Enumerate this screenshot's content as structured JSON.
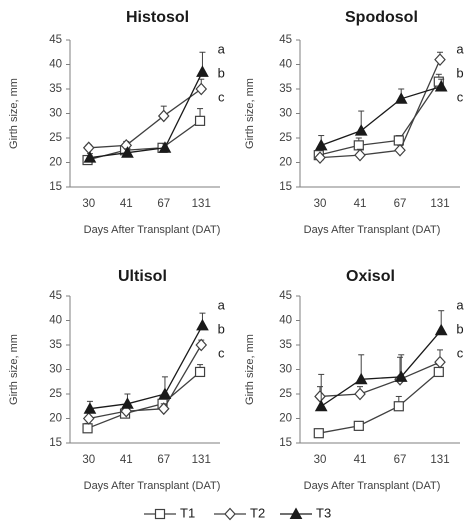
{
  "legend": [
    {
      "label": "T1",
      "marker": "square"
    },
    {
      "label": "T2",
      "marker": "diamond"
    },
    {
      "label": "T3",
      "marker": "triangle"
    }
  ],
  "colors": {
    "line": "#404040",
    "filled": "#1a1a1a",
    "text": "#404040"
  },
  "chart_data": [
    {
      "type": "line",
      "title": "Histosol",
      "xlabel": "Days After Transplant (DAT)",
      "ylabel": "Girth size, mm",
      "categories": [
        "30",
        "41",
        "67",
        "131"
      ],
      "ylim": [
        15,
        45
      ],
      "yticks": [
        15,
        20,
        25,
        30,
        35,
        40,
        45
      ],
      "series": [
        {
          "name": "T1",
          "values": [
            20.5,
            22.5,
            23.0,
            28.5
          ],
          "err": [
            0.5,
            0.7,
            0.8,
            2.5
          ]
        },
        {
          "name": "T2",
          "values": [
            23.0,
            23.5,
            29.5,
            35.0
          ],
          "err": [
            0.6,
            0.8,
            2.0,
            2.0
          ]
        },
        {
          "name": "T3",
          "values": [
            21.0,
            22.0,
            23.0,
            38.5
          ],
          "err": [
            0.8,
            0.8,
            0.8,
            4.0
          ]
        }
      ],
      "letters": [
        {
          "text": "a",
          "series": "T3"
        },
        {
          "text": "b",
          "series": "T2"
        },
        {
          "text": "c",
          "series": "T1"
        }
      ]
    },
    {
      "type": "line",
      "title": "Spodosol",
      "xlabel": "Days After Transplant (DAT)",
      "ylabel": "Girth size, mm",
      "categories": [
        "30",
        "41",
        "67",
        "131"
      ],
      "ylim": [
        15,
        45
      ],
      "yticks": [
        15,
        20,
        25,
        30,
        35,
        40,
        45
      ],
      "series": [
        {
          "name": "T1",
          "values": [
            21.5,
            23.5,
            24.5,
            36.5
          ],
          "err": [
            0.8,
            1.5,
            1.0,
            1.5
          ]
        },
        {
          "name": "T2",
          "values": [
            21.0,
            21.5,
            22.5,
            41.0
          ],
          "err": [
            0.6,
            1.2,
            1.0,
            1.5
          ]
        },
        {
          "name": "T3",
          "values": [
            23.5,
            26.5,
            33.0,
            35.5
          ],
          "err": [
            2.0,
            4.0,
            2.0,
            1.5
          ]
        }
      ],
      "letters": [
        {
          "text": "a",
          "series": "T2"
        },
        {
          "text": "b",
          "series": "T1"
        },
        {
          "text": "c",
          "series": "T3"
        }
      ]
    },
    {
      "type": "line",
      "title": "Ultisol",
      "xlabel": "Days After Transplant (DAT)",
      "ylabel": "Girth size, mm",
      "categories": [
        "30",
        "41",
        "67",
        "131"
      ],
      "ylim": [
        15,
        45
      ],
      "yticks": [
        15,
        20,
        25,
        30,
        35,
        40,
        45
      ],
      "series": [
        {
          "name": "T1",
          "values": [
            18.0,
            21.0,
            23.0,
            29.5
          ],
          "err": [
            1.0,
            1.0,
            1.5,
            1.5
          ]
        },
        {
          "name": "T2",
          "values": [
            20.0,
            21.5,
            22.0,
            35.0
          ],
          "err": [
            1.2,
            1.0,
            1.0,
            1.0
          ]
        },
        {
          "name": "T3",
          "values": [
            22.0,
            23.0,
            25.0,
            39.0
          ],
          "err": [
            1.5,
            2.0,
            3.5,
            2.5
          ]
        }
      ],
      "letters": [
        {
          "text": "a",
          "series": "T3"
        },
        {
          "text": "b",
          "series": "T2"
        },
        {
          "text": "c",
          "series": "T1"
        }
      ]
    },
    {
      "type": "line",
      "title": "Oxisol",
      "xlabel": "Days After Transplant (DAT)",
      "ylabel": "Girth size, mm",
      "categories": [
        "30",
        "41",
        "67",
        "131"
      ],
      "ylim": [
        15,
        45
      ],
      "yticks": [
        15,
        20,
        25,
        30,
        35,
        40,
        45
      ],
      "series": [
        {
          "name": "T1",
          "values": [
            17.0,
            18.5,
            22.5,
            29.5
          ],
          "err": [
            0.8,
            0.8,
            2.0,
            1.5
          ]
        },
        {
          "name": "T2",
          "values": [
            24.5,
            25.0,
            28.0,
            31.5
          ],
          "err": [
            2.0,
            1.5,
            4.5,
            2.5
          ]
        },
        {
          "name": "T3",
          "values": [
            22.5,
            28.0,
            28.5,
            38.0
          ],
          "err": [
            6.5,
            5.0,
            4.5,
            4.0
          ]
        }
      ],
      "letters": [
        {
          "text": "a",
          "series": "T3"
        },
        {
          "text": "b",
          "series": "T2"
        },
        {
          "text": "c",
          "series": "T1"
        }
      ]
    }
  ]
}
